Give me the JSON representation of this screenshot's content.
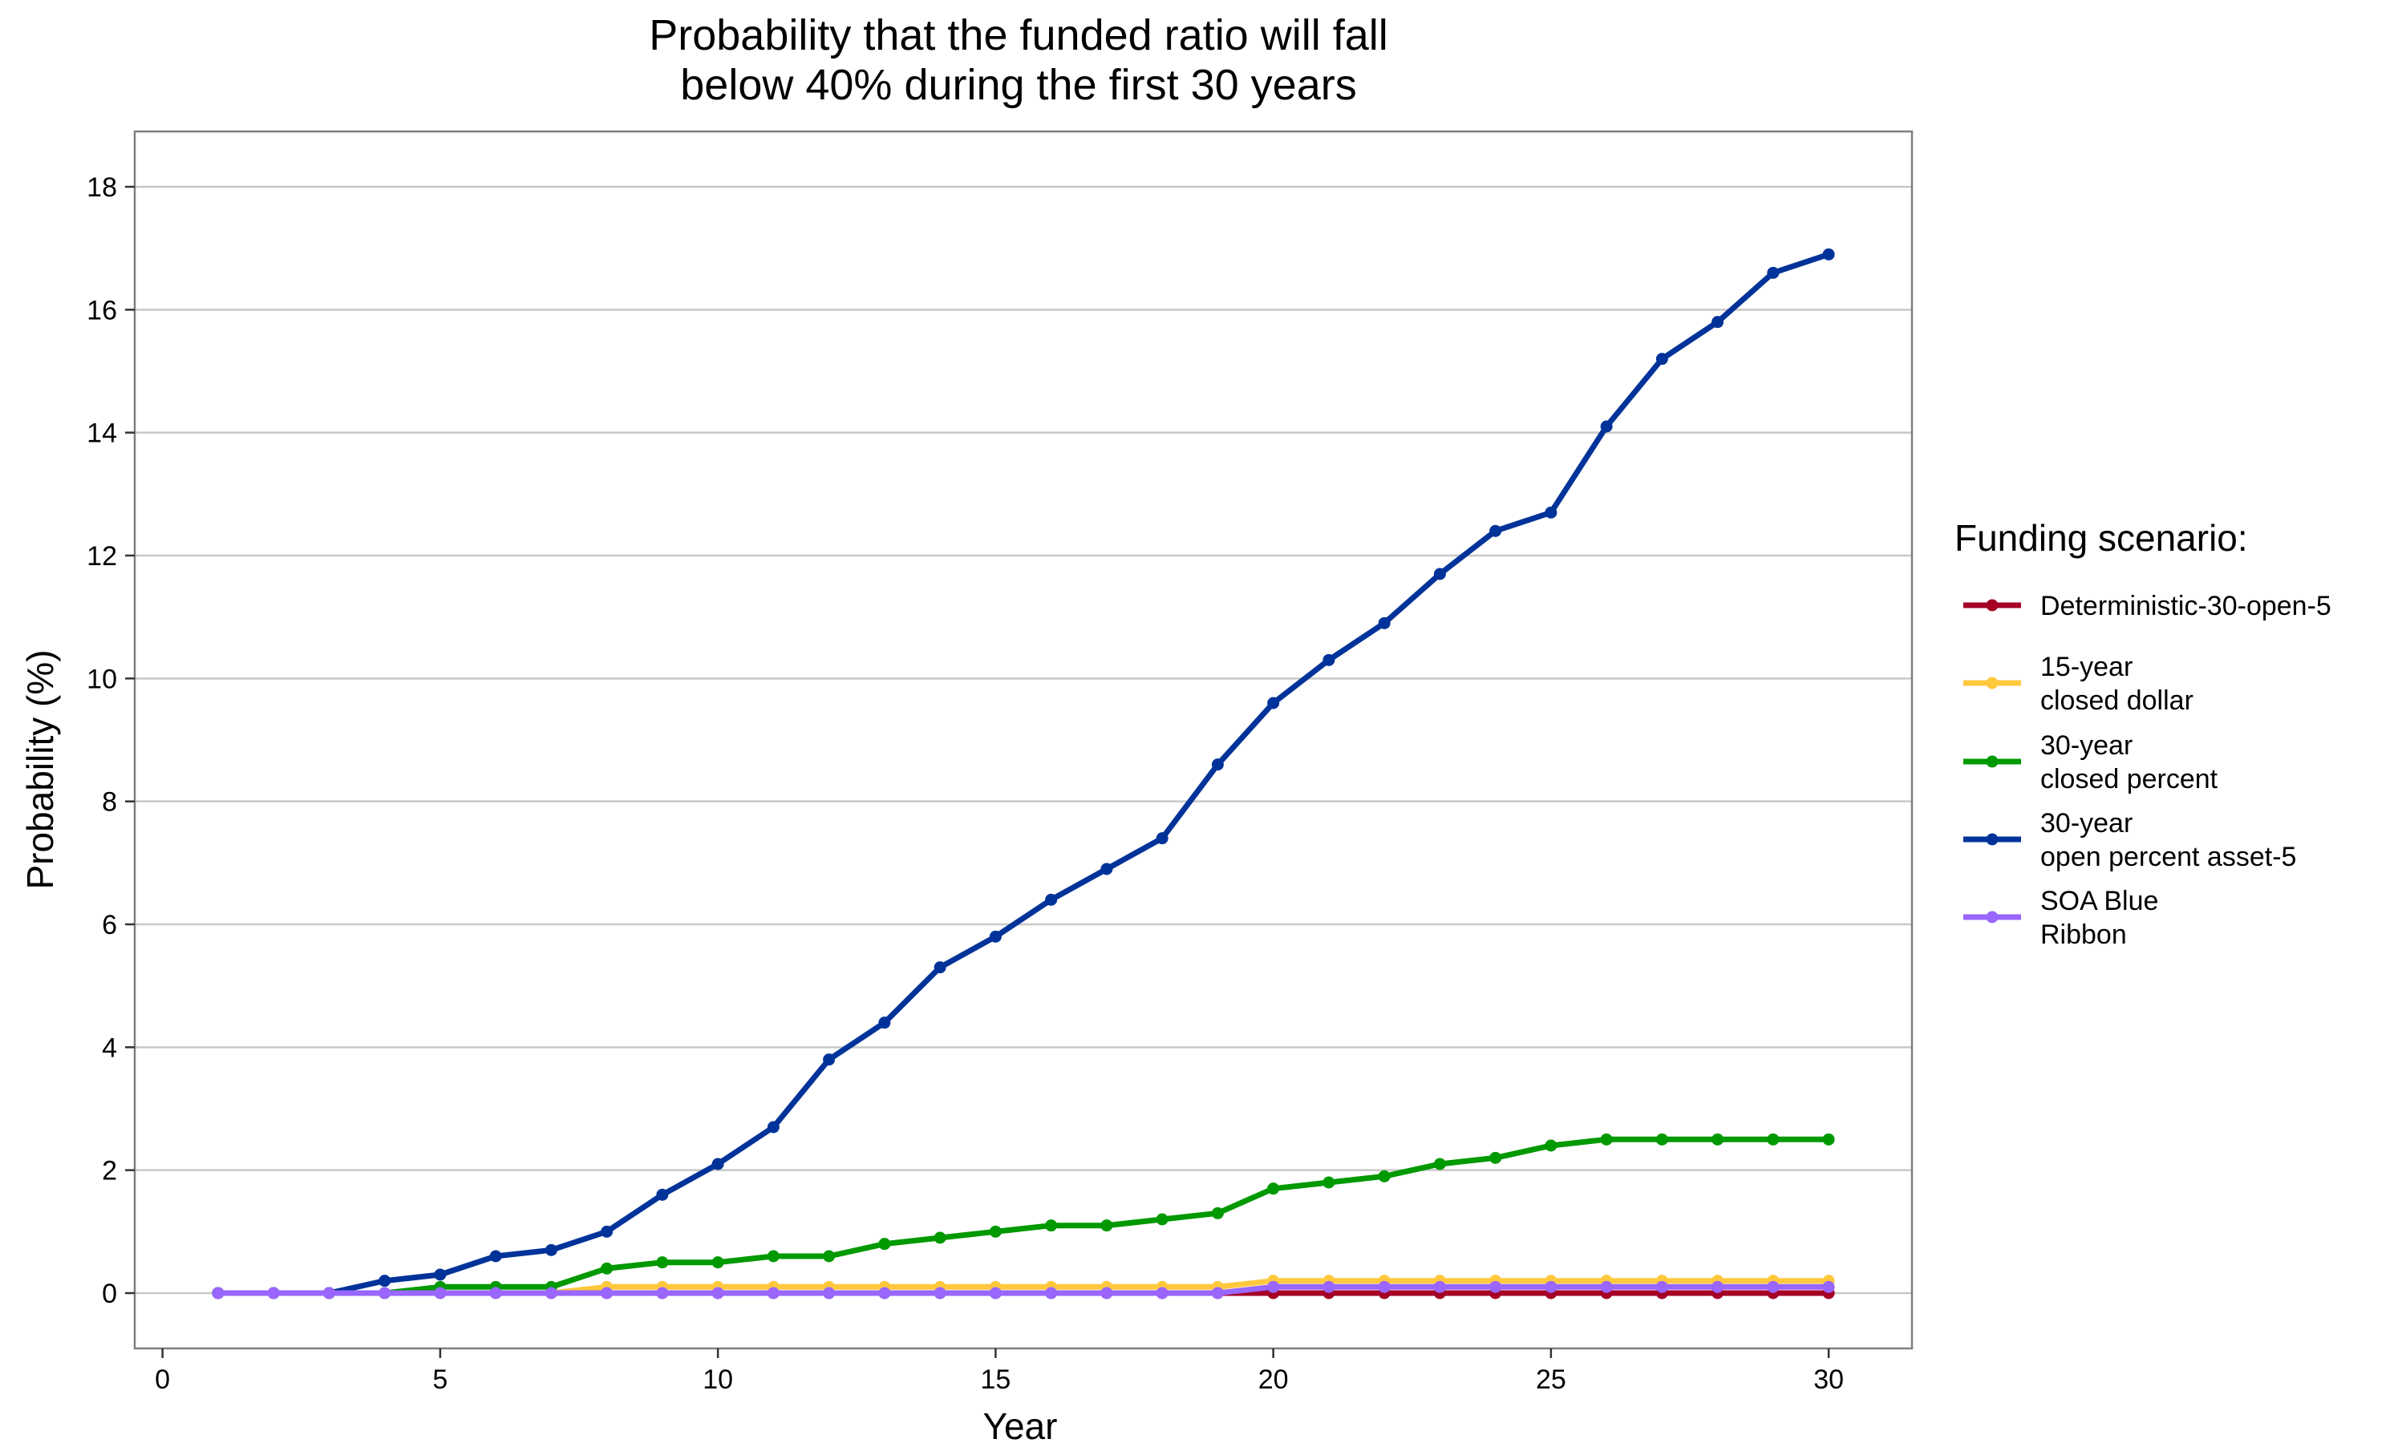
{
  "chart_data": {
    "type": "line",
    "title": [
      "Probability that the funded ratio will fall",
      "below 40% during the first 30 years"
    ],
    "xlabel": "Year",
    "ylabel": "Probability (%)",
    "xlim": [
      -0.5,
      31.5
    ],
    "ylim": [
      -0.9,
      18.9
    ],
    "x_ticks": [
      0,
      5,
      10,
      15,
      20,
      25,
      30
    ],
    "y_ticks": [
      0,
      2,
      4,
      6,
      8,
      10,
      12,
      14,
      16,
      18
    ],
    "grid": "horizontal major lines",
    "legend_position": "right",
    "legend_title": "Funding scenario:",
    "x": [
      1,
      2,
      3,
      4,
      5,
      6,
      7,
      8,
      9,
      10,
      11,
      12,
      13,
      14,
      15,
      16,
      17,
      18,
      19,
      20,
      21,
      22,
      23,
      24,
      25,
      26,
      27,
      28,
      29,
      30
    ],
    "series": [
      {
        "name": [
          "Deterministic-30-open-5"
        ],
        "color": "#a50026",
        "values": [
          0,
          0,
          0,
          0,
          0,
          0,
          0,
          0,
          0,
          0,
          0,
          0,
          0,
          0,
          0,
          0,
          0,
          0,
          0,
          0,
          0,
          0,
          0,
          0,
          0,
          0,
          0,
          0,
          0,
          0
        ]
      },
      {
        "name": [
          "15-year",
          "closed dollar"
        ],
        "color": "#ffc83d",
        "values": [
          0,
          0,
          0,
          0,
          0,
          0,
          0,
          0.1,
          0.1,
          0.1,
          0.1,
          0.1,
          0.1,
          0.1,
          0.1,
          0.1,
          0.1,
          0.1,
          0.1,
          0.2,
          0.2,
          0.2,
          0.2,
          0.2,
          0.2,
          0.2,
          0.2,
          0.2,
          0.2,
          0.2
        ]
      },
      {
        "name": [
          "30-year",
          "closed percent"
        ],
        "color": "#009900",
        "values": [
          0,
          0,
          0,
          0,
          0.1,
          0.1,
          0.1,
          0.4,
          0.5,
          0.5,
          0.6,
          0.6,
          0.8,
          0.9,
          1.0,
          1.1,
          1.1,
          1.2,
          1.3,
          1.7,
          1.8,
          1.9,
          2.1,
          2.2,
          2.4,
          2.5,
          2.5,
          2.5,
          2.5,
          2.5
        ]
      },
      {
        "name": [
          "30-year",
          "open percent asset-5"
        ],
        "color": "#003399",
        "values": [
          0,
          0,
          0,
          0.2,
          0.3,
          0.6,
          0.7,
          1.0,
          1.6,
          2.1,
          2.7,
          3.8,
          4.4,
          5.3,
          5.8,
          6.4,
          6.9,
          7.4,
          8.6,
          9.6,
          10.3,
          10.9,
          11.7,
          12.4,
          12.7,
          14.1,
          15.2,
          15.8,
          16.6,
          16.9
        ]
      },
      {
        "name": [
          "SOA Blue",
          "Ribbon"
        ],
        "color": "#9966ff",
        "values": [
          0,
          0,
          0,
          0,
          0,
          0,
          0,
          0,
          0,
          0,
          0,
          0,
          0,
          0,
          0,
          0,
          0,
          0,
          0,
          0.1,
          0.1,
          0.1,
          0.1,
          0.1,
          0.1,
          0.1,
          0.1,
          0.1,
          0.1,
          0.1
        ]
      }
    ]
  }
}
